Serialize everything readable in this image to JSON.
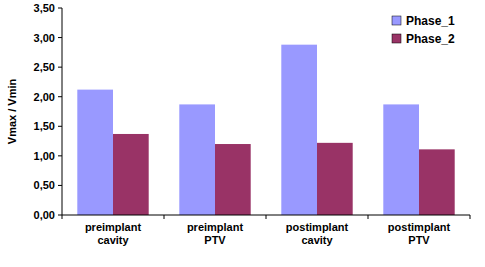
{
  "chart_data": {
    "type": "bar",
    "y_label": "Vmax / Vmin",
    "categories": [
      "preimplant cavity",
      "preimplant PTV",
      "postimplant cavity",
      "postimplant PTV"
    ],
    "series": [
      {
        "name": "Phase_1",
        "color": "#9999ff",
        "values": [
          2.12,
          1.87,
          2.88,
          1.87
        ]
      },
      {
        "name": "Phase_2",
        "color": "#993366",
        "values": [
          1.37,
          1.2,
          1.22,
          1.11
        ]
      }
    ],
    "ylim": [
      0,
      3.5
    ],
    "yticks": [
      {
        "value": 0,
        "label": "0,00"
      },
      {
        "value": 0.5,
        "label": "0,50"
      },
      {
        "value": 1,
        "label": "1,00"
      },
      {
        "value": 1.5,
        "label": "1,50"
      },
      {
        "value": 2,
        "label": "2,00"
      },
      {
        "value": 2.5,
        "label": "2,50"
      },
      {
        "value": 3,
        "label": "3,00"
      },
      {
        "value": 3.5,
        "label": "3,50"
      }
    ],
    "grid": false,
    "legend": "top-right"
  }
}
